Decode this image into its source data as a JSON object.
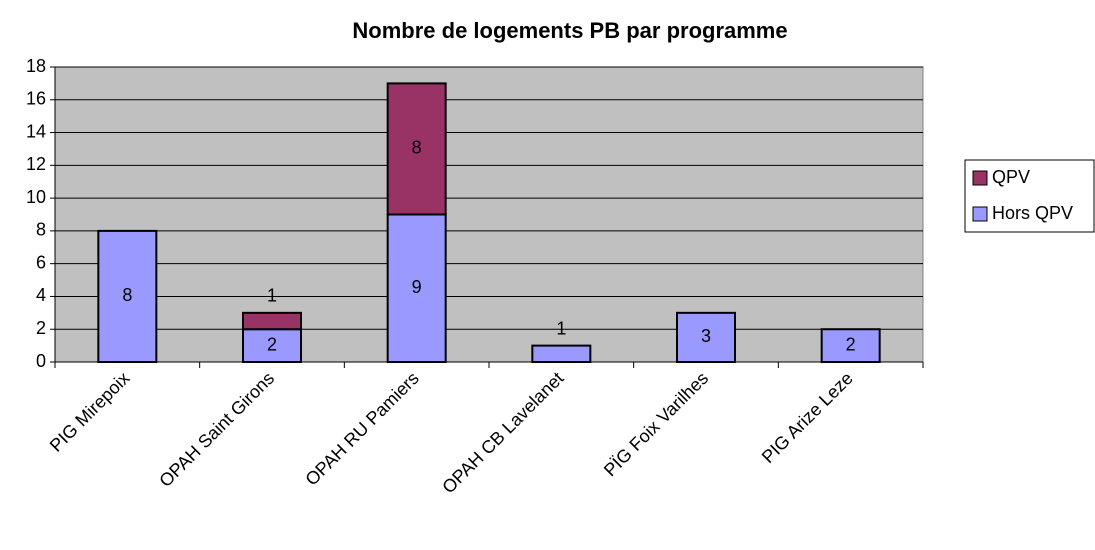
{
  "chart_data": {
    "type": "stacked_bar",
    "title": "Nombre de logements PB par programme",
    "categories": [
      "PIG Mirepoix",
      "OPAH Saint Girons",
      "OPAH RU Pamiers",
      "OPAH CB Lavelanet",
      "PÏG Foix Varilhes",
      "PIG Arize Leze"
    ],
    "series": [
      {
        "name": "Hors QPV",
        "color": "#9999ff",
        "values": [
          8,
          2,
          9,
          1,
          3,
          2
        ]
      },
      {
        "name": "QPV",
        "color": "#993366",
        "values": [
          null,
          1,
          8,
          null,
          null,
          null
        ]
      }
    ],
    "ylim": [
      0,
      18
    ],
    "yticks": [
      0,
      2,
      4,
      6,
      8,
      10,
      12,
      14,
      16,
      18
    ],
    "grid": true,
    "legend": "right"
  }
}
